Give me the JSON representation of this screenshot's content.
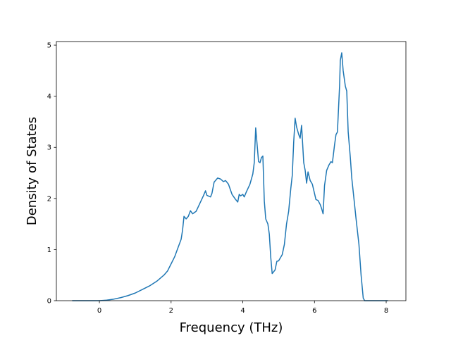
{
  "chart_data": {
    "type": "line",
    "xlabel": "Frequency (THz)",
    "ylabel": "Density of States",
    "color": "#1f77b4",
    "xlim": [
      -1.2,
      8.55
    ],
    "ylim": [
      0,
      5.07
    ],
    "xticks": [
      0,
      2,
      4,
      6,
      8
    ],
    "yticks": [
      0,
      1,
      2,
      3,
      4,
      5
    ],
    "x": [
      -0.76,
      0,
      0.2,
      0.4,
      0.6,
      0.8,
      1.0,
      1.2,
      1.4,
      1.6,
      1.8,
      1.9,
      2.0,
      2.1,
      2.2,
      2.28,
      2.32,
      2.36,
      2.42,
      2.48,
      2.54,
      2.6,
      2.7,
      2.8,
      2.9,
      2.96,
      3.0,
      3.1,
      3.14,
      3.2,
      3.3,
      3.38,
      3.46,
      3.52,
      3.6,
      3.7,
      3.8,
      3.86,
      3.9,
      3.94,
      4.0,
      4.04,
      4.1,
      4.2,
      4.28,
      4.32,
      4.36,
      4.4,
      4.44,
      4.48,
      4.52,
      4.56,
      4.6,
      4.64,
      4.7,
      4.74,
      4.78,
      4.82,
      4.9,
      4.95,
      5.0,
      5.1,
      5.16,
      5.22,
      5.28,
      5.34,
      5.38,
      5.42,
      5.46,
      5.5,
      5.56,
      5.6,
      5.64,
      5.7,
      5.74,
      5.78,
      5.82,
      5.88,
      5.94,
      6.0,
      6.04,
      6.1,
      6.16,
      6.2,
      6.24,
      6.28,
      6.34,
      6.4,
      6.46,
      6.5,
      6.56,
      6.6,
      6.64,
      6.7,
      6.72,
      6.76,
      6.8,
      6.86,
      6.9,
      6.94,
      7.0,
      7.04,
      7.1,
      7.16,
      7.24,
      7.3,
      7.36,
      7.4,
      8.05
    ],
    "values": [
      0,
      0,
      0.01,
      0.03,
      0.06,
      0.1,
      0.15,
      0.22,
      0.29,
      0.38,
      0.5,
      0.58,
      0.72,
      0.86,
      1.05,
      1.2,
      1.38,
      1.65,
      1.6,
      1.65,
      1.76,
      1.7,
      1.75,
      1.9,
      2.05,
      2.15,
      2.06,
      2.03,
      2.1,
      2.32,
      2.4,
      2.38,
      2.33,
      2.35,
      2.28,
      2.08,
      1.98,
      1.93,
      2.08,
      2.05,
      2.08,
      2.03,
      2.13,
      2.28,
      2.48,
      2.7,
      3.38,
      3.05,
      2.72,
      2.7,
      2.8,
      2.83,
      1.95,
      1.6,
      1.5,
      1.3,
      0.85,
      0.53,
      0.6,
      0.77,
      0.78,
      0.9,
      1.1,
      1.5,
      1.75,
      2.2,
      2.45,
      3.1,
      3.57,
      3.4,
      3.25,
      3.18,
      3.43,
      2.7,
      2.55,
      2.3,
      2.52,
      2.35,
      2.28,
      2.1,
      1.98,
      1.96,
      1.88,
      1.8,
      1.7,
      2.25,
      2.55,
      2.65,
      2.72,
      2.7,
      3.05,
      3.25,
      3.3,
      4.2,
      4.7,
      4.85,
      4.5,
      4.2,
      4.1,
      3.3,
      2.8,
      2.4,
      2.0,
      1.6,
      1.1,
      0.5,
      0.05,
      0,
      0
    ]
  }
}
